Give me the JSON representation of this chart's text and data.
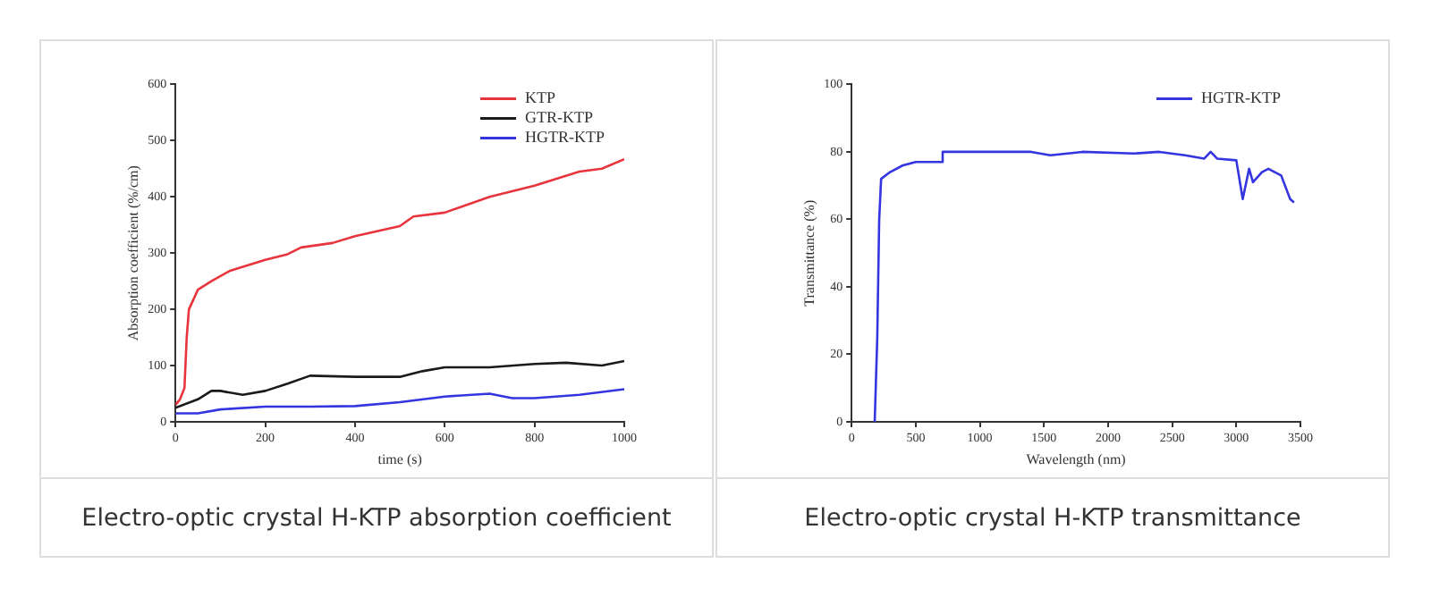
{
  "chart_data": [
    {
      "type": "line",
      "title": "Electro-optic crystal H-KTP absorption coefficient",
      "xlabel": "time (s)",
      "ylabel": "Absorption coefficient (%/cm)",
      "xlim": [
        0,
        1000
      ],
      "xticks": [
        0,
        200,
        400,
        600,
        800,
        1000
      ],
      "ylim": [
        0,
        600
      ],
      "yticks": [
        0,
        100,
        200,
        300,
        400,
        500,
        600
      ],
      "grid": false,
      "legend": "top right",
      "marker": "none",
      "series": [
        {
          "name": "KTP",
          "color": "#e8343c",
          "x": [
            0,
            10,
            20,
            25,
            30,
            50,
            80,
            120,
            200,
            250,
            280,
            350,
            400,
            500,
            530,
            600,
            700,
            800,
            900,
            950,
            1000
          ],
          "values": [
            30,
            40,
            60,
            150,
            200,
            235,
            250,
            268,
            288,
            298,
            310,
            318,
            330,
            348,
            365,
            372,
            400,
            420,
            445,
            450,
            467
          ]
        },
        {
          "name": "GTR-KTP",
          "color": "#1a1a1a",
          "x": [
            0,
            50,
            80,
            100,
            150,
            200,
            250,
            300,
            400,
            500,
            550,
            600,
            700,
            800,
            870,
            950,
            1000
          ],
          "values": [
            25,
            40,
            55,
            55,
            48,
            55,
            68,
            82,
            80,
            80,
            90,
            97,
            97,
            103,
            105,
            100,
            108
          ]
        },
        {
          "name": "HGTR-KTP",
          "color": "#3434e0",
          "x": [
            0,
            50,
            100,
            200,
            300,
            400,
            500,
            600,
            700,
            750,
            800,
            900,
            1000
          ],
          "values": [
            15,
            15,
            22,
            27,
            27,
            28,
            35,
            45,
            50,
            42,
            42,
            48,
            58
          ]
        }
      ]
    },
    {
      "type": "line",
      "title": "Electro-optic crystal H-KTP transmittance",
      "xlabel": "Wavelength (nm)",
      "ylabel": "Transmittance (%)",
      "xlim": [
        0,
        3500
      ],
      "xticks": [
        0,
        500,
        1000,
        1500,
        2000,
        2500,
        3000,
        3500
      ],
      "ylim": [
        0,
        100
      ],
      "yticks": [
        0,
        20,
        40,
        60,
        80,
        100
      ],
      "grid": false,
      "legend": "top right",
      "marker": "none",
      "series": [
        {
          "name": "HGTR-KTP",
          "color": "#3434e0",
          "x": [
            180,
            200,
            215,
            230,
            300,
            400,
            500,
            700,
            710,
            1000,
            1400,
            1550,
            1800,
            2200,
            2400,
            2600,
            2750,
            2800,
            2850,
            3000,
            3050,
            3100,
            3130,
            3200,
            3250,
            3350,
            3420,
            3450
          ],
          "values": [
            0,
            25,
            60,
            72,
            74,
            76,
            77,
            77,
            80,
            80,
            80,
            79,
            80,
            79.5,
            80,
            79,
            78,
            80,
            78,
            77.5,
            66,
            75,
            71,
            74,
            75,
            73,
            66,
            65
          ]
        }
      ]
    }
  ]
}
